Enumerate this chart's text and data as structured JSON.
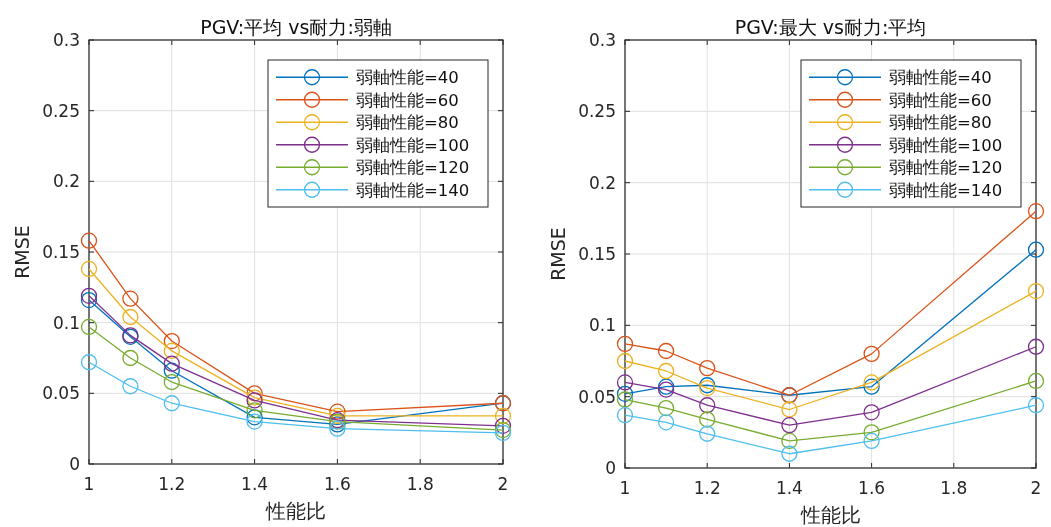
{
  "chart_data": [
    {
      "type": "line",
      "title": "PGV:平均 vs耐力:弱軸",
      "xlabel": "性能比",
      "ylabel": "RMSE",
      "x": [
        1,
        1.1,
        1.2,
        1.4,
        1.6,
        2
      ],
      "xlim": [
        1,
        2
      ],
      "xticks": [
        1,
        1.2,
        1.4,
        1.6,
        1.8,
        2
      ],
      "ylim": [
        0,
        0.3
      ],
      "yticks": [
        0,
        0.05,
        0.1,
        0.15,
        0.2,
        0.25,
        0.3
      ],
      "grid": true,
      "legend": "top right",
      "marker": "circle",
      "line_style": "solid",
      "series": [
        {
          "name": "弱軸性能=40",
          "color": "#0072bd",
          "values": [
            0.116,
            0.09,
            0.066,
            0.033,
            0.028,
            0.043
          ]
        },
        {
          "name": "弱軸性能=60",
          "color": "#d95319",
          "values": [
            0.158,
            0.117,
            0.087,
            0.05,
            0.037,
            0.043
          ]
        },
        {
          "name": "弱軸性能=80",
          "color": "#edb120",
          "values": [
            0.138,
            0.104,
            0.08,
            0.047,
            0.034,
            0.034
          ]
        },
        {
          "name": "弱軸性能=100",
          "color": "#7e2f8e",
          "values": [
            0.119,
            0.091,
            0.071,
            0.045,
            0.031,
            0.027
          ]
        },
        {
          "name": "弱軸性能=120",
          "color": "#77ac30",
          "values": [
            0.097,
            0.075,
            0.058,
            0.038,
            0.03,
            0.024
          ]
        },
        {
          "name": "弱軸性能=140",
          "color": "#4dbeee",
          "values": [
            0.072,
            0.055,
            0.043,
            0.03,
            0.025,
            0.022
          ]
        }
      ]
    },
    {
      "type": "line",
      "title": "PGV:最大 vs耐力:平均",
      "xlabel": "性能比",
      "ylabel": "RMSE",
      "x": [
        1,
        1.1,
        1.2,
        1.4,
        1.6,
        2
      ],
      "xlim": [
        1,
        2
      ],
      "xticks": [
        1,
        1.2,
        1.4,
        1.6,
        1.8,
        2
      ],
      "ylim": [
        0,
        0.3
      ],
      "yticks": [
        0,
        0.05,
        0.1,
        0.15,
        0.2,
        0.25,
        0.3
      ],
      "grid": true,
      "legend": "top right",
      "marker": "circle",
      "line_style": "solid",
      "series": [
        {
          "name": "弱軸性能=40",
          "color": "#0072bd",
          "values": [
            0.052,
            0.057,
            0.058,
            0.051,
            0.057,
            0.153
          ]
        },
        {
          "name": "弱軸性能=60",
          "color": "#d95319",
          "values": [
            0.087,
            0.082,
            0.07,
            0.051,
            0.08,
            0.18
          ]
        },
        {
          "name": "弱軸性能=80",
          "color": "#edb120",
          "values": [
            0.075,
            0.068,
            0.056,
            0.041,
            0.06,
            0.124
          ]
        },
        {
          "name": "弱軸性能=100",
          "color": "#7e2f8e",
          "values": [
            0.06,
            0.055,
            0.044,
            0.03,
            0.039,
            0.085
          ]
        },
        {
          "name": "弱軸性能=120",
          "color": "#77ac30",
          "values": [
            0.048,
            0.042,
            0.034,
            0.019,
            0.025,
            0.061
          ]
        },
        {
          "name": "弱軸性能=140",
          "color": "#4dbeee",
          "values": [
            0.037,
            0.032,
            0.024,
            0.01,
            0.019,
            0.044
          ]
        }
      ]
    }
  ]
}
